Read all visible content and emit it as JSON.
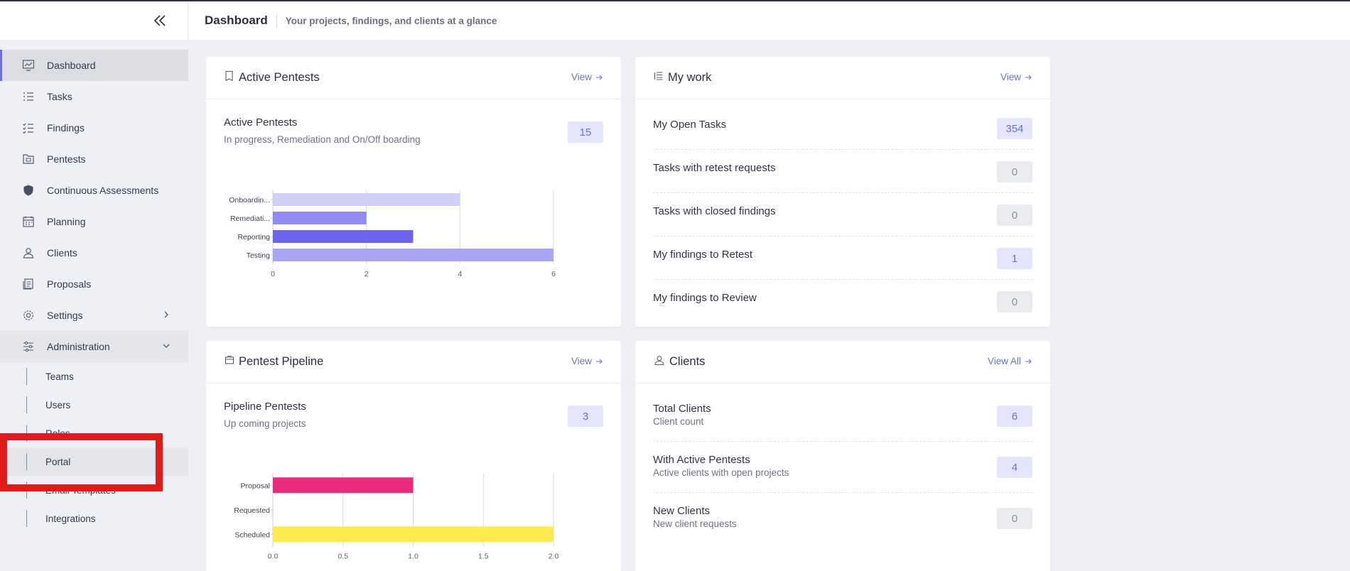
{
  "header": {
    "title": "Dashboard",
    "subtitle": "Your projects, findings, and clients at a glance"
  },
  "sidebar": {
    "items": [
      {
        "label": "Dashboard",
        "icon": "dashboard-icon"
      },
      {
        "label": "Tasks",
        "icon": "list-icon"
      },
      {
        "label": "Findings",
        "icon": "checklist-icon"
      },
      {
        "label": "Pentests",
        "icon": "folder-icon"
      },
      {
        "label": "Continuous Assessments",
        "icon": "shield-icon"
      },
      {
        "label": "Planning",
        "icon": "calendar-icon"
      },
      {
        "label": "Clients",
        "icon": "users-icon"
      },
      {
        "label": "Proposals",
        "icon": "document-stack-icon"
      },
      {
        "label": "Settings",
        "icon": "gear-icon"
      },
      {
        "label": "Administration",
        "icon": "sliders-icon"
      }
    ],
    "admin_subitems": [
      "Teams",
      "Users",
      "Roles",
      "Portal",
      "Email Templates",
      "Integrations"
    ]
  },
  "active_pentests": {
    "title": "Active Pentests",
    "view_label": "View",
    "stat_label": "Active Pentests",
    "stat_sub": "In progress, Remediation and On/Off boarding",
    "count": "15"
  },
  "my_work": {
    "title": "My work",
    "view_label": "View",
    "rows": [
      {
        "label": "My Open Tasks",
        "value": "354",
        "style": "blue"
      },
      {
        "label": "Tasks with retest requests",
        "value": "0",
        "style": "grey"
      },
      {
        "label": "Tasks with closed findings",
        "value": "0",
        "style": "grey"
      },
      {
        "label": "My findings to Retest",
        "value": "1",
        "style": "blue"
      },
      {
        "label": "My findings to Review",
        "value": "0",
        "style": "grey"
      }
    ]
  },
  "pentest_pipeline": {
    "title": "Pentest Pipeline",
    "view_label": "View",
    "stat_label": "Pipeline Pentests",
    "stat_sub": "Up coming projects",
    "count": "3"
  },
  "clients": {
    "title": "Clients",
    "view_label": "View All",
    "rows": [
      {
        "label": "Total Clients",
        "sub": "Client count",
        "value": "6",
        "style": "blue"
      },
      {
        "label": "With Active Pentests",
        "sub": "Active clients with open projects",
        "value": "4",
        "style": "blue"
      },
      {
        "label": "New Clients",
        "sub": "New client requests",
        "value": "0",
        "style": "grey"
      }
    ]
  },
  "chart_data": [
    {
      "type": "bar",
      "orientation": "horizontal",
      "categories": [
        "Onboardin...",
        "Remediati...",
        "Reporting",
        "Testing"
      ],
      "values": [
        4,
        2,
        3,
        6
      ],
      "colors": [
        "#cfcff7",
        "#8d8af2",
        "#6c63f0",
        "#a9a6f5"
      ],
      "xlim": [
        0,
        6
      ],
      "xticks": [
        "0",
        "2",
        "4",
        "6"
      ],
      "grid": true
    },
    {
      "type": "bar",
      "orientation": "horizontal",
      "categories": [
        "Proposal",
        "Requested",
        "Scheduled"
      ],
      "values": [
        1.0,
        0,
        2.0
      ],
      "colors": [
        "#ea2a7a",
        "#f2a1c0",
        "#fdea4f"
      ],
      "xlim": [
        0,
        2.0
      ],
      "xticks": [
        "0.0",
        "0.5",
        "1.0",
        "1.5",
        "2.0"
      ],
      "grid": true
    }
  ]
}
